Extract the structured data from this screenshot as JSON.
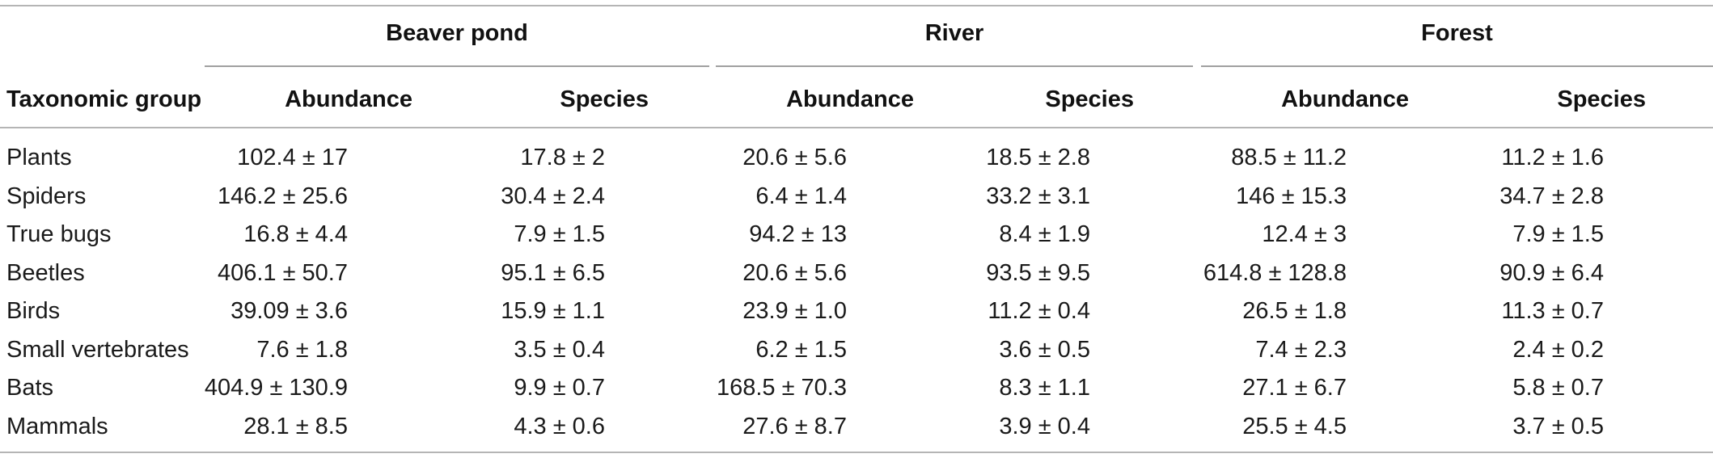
{
  "table": {
    "group_headers": [
      "Beaver pond",
      "River",
      "Forest"
    ],
    "row_header_label": "Taxonomic group",
    "sub_headers": [
      "Abundance",
      "Species",
      "Abundance",
      "Species",
      "Abundance",
      "Species"
    ],
    "rows": [
      {
        "group": "Plants",
        "values": [
          "102.4 ± 17",
          "17.8 ± 2",
          "20.6 ± 5.6",
          "18.5 ± 2.8",
          "88.5 ± 11.2",
          "11.2 ± 1.6"
        ]
      },
      {
        "group": "Spiders",
        "values": [
          "146.2 ± 25.6",
          "30.4 ± 2.4",
          "6.4 ± 1.4",
          "33.2 ± 3.1",
          "146 ± 15.3",
          "34.7 ± 2.8"
        ]
      },
      {
        "group": "True bugs",
        "values": [
          "16.8 ± 4.4",
          "7.9 ± 1.5",
          "94.2 ± 13",
          "8.4 ± 1.9",
          "12.4 ± 3",
          "7.9 ± 1.5"
        ]
      },
      {
        "group": "Beetles",
        "values": [
          "406.1 ± 50.7",
          "95.1 ± 6.5",
          "20.6 ± 5.6",
          "93.5 ± 9.5",
          "614.8 ± 128.8",
          "90.9 ± 6.4"
        ]
      },
      {
        "group": "Birds",
        "values": [
          "39.09 ± 3.6",
          "15.9 ± 1.1",
          "23.9 ± 1.0",
          "11.2 ± 0.4",
          "26.5 ± 1.8",
          "11.3 ± 0.7"
        ]
      },
      {
        "group": "Small vertebrates",
        "values": [
          "7.6 ± 1.8",
          "3.5 ± 0.4",
          "6.2 ± 1.5",
          "3.6 ± 0.5",
          "7.4 ± 2.3",
          "2.4 ± 0.2"
        ]
      },
      {
        "group": "Bats",
        "values": [
          "404.9 ± 130.9",
          "9.9 ± 0.7",
          "168.5 ± 70.3",
          "8.3 ± 1.1",
          "27.1 ± 6.7",
          "5.8 ± 0.7"
        ]
      },
      {
        "group": "Mammals",
        "values": [
          "28.1 ± 8.5",
          "4.3 ± 0.6",
          "27.6 ± 8.7",
          "3.9 ± 0.4",
          "25.5 ± 4.5",
          "3.7 ± 0.5"
        ]
      }
    ]
  }
}
